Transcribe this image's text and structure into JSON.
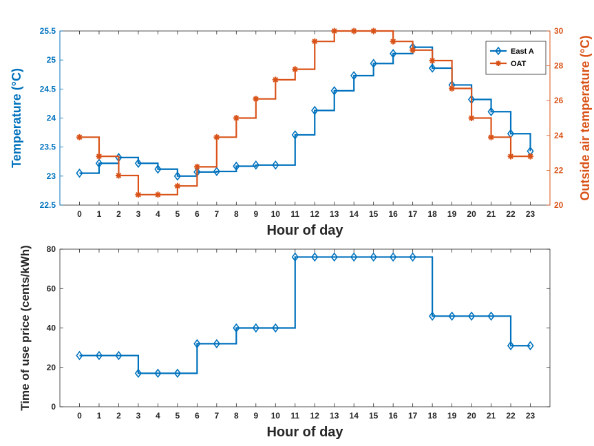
{
  "chart_data": [
    {
      "type": "line",
      "step": "post",
      "xlabel": "Hour of day",
      "ylabel": "Temperature (°C)",
      "y2label": "Outside air temperature (°C)",
      "x": [
        0,
        1,
        2,
        3,
        4,
        5,
        6,
        7,
        8,
        9,
        10,
        11,
        12,
        13,
        14,
        15,
        16,
        17,
        18,
        19,
        20,
        21,
        22,
        23
      ],
      "xlim": [
        -1,
        24
      ],
      "ylim": [
        22.5,
        25.5
      ],
      "yticks": [
        22.5,
        23,
        23.5,
        24,
        24.5,
        25,
        25.5
      ],
      "y2lim": [
        20,
        30
      ],
      "y2ticks": [
        20,
        22,
        24,
        26,
        28,
        30
      ],
      "legend": "top-right",
      "grid": false,
      "series": [
        {
          "name": "East A",
          "axis": "left",
          "color": "#0072BD",
          "marker": "diamond",
          "values": [
            23.05,
            23.22,
            23.32,
            23.22,
            23.12,
            23.0,
            23.07,
            23.08,
            23.17,
            23.19,
            23.19,
            23.71,
            24.13,
            24.47,
            24.73,
            24.94,
            25.11,
            25.22,
            24.86,
            24.57,
            24.32,
            24.11,
            23.73,
            23.43
          ]
        },
        {
          "name": "OAT",
          "axis": "right",
          "color": "#D95319",
          "marker": "asterisk",
          "values": [
            23.9,
            22.8,
            21.7,
            20.6,
            20.6,
            21.1,
            22.2,
            23.9,
            25.0,
            26.1,
            27.2,
            27.8,
            29.4,
            30.0,
            30.0,
            30.0,
            29.4,
            28.9,
            28.3,
            26.7,
            25.0,
            23.9,
            22.8,
            22.8
          ]
        }
      ]
    },
    {
      "type": "line",
      "step": "post",
      "xlabel": "Hour of day",
      "ylabel": "Time of use price (cents/kWh)",
      "x": [
        0,
        1,
        2,
        3,
        4,
        5,
        6,
        7,
        8,
        9,
        10,
        11,
        12,
        13,
        14,
        15,
        16,
        17,
        18,
        19,
        20,
        21,
        22,
        23
      ],
      "xlim": [
        -1,
        24
      ],
      "ylim": [
        0,
        80
      ],
      "yticks": [
        0,
        20,
        40,
        60,
        80
      ],
      "grid": false,
      "series": [
        {
          "color": "#0072BD",
          "marker": "diamond",
          "values": [
            26,
            26,
            26,
            17,
            17,
            17,
            32,
            32,
            40,
            40,
            40,
            76,
            76,
            76,
            76,
            76,
            76,
            76,
            46,
            46,
            46,
            46,
            31,
            31
          ]
        }
      ]
    }
  ]
}
